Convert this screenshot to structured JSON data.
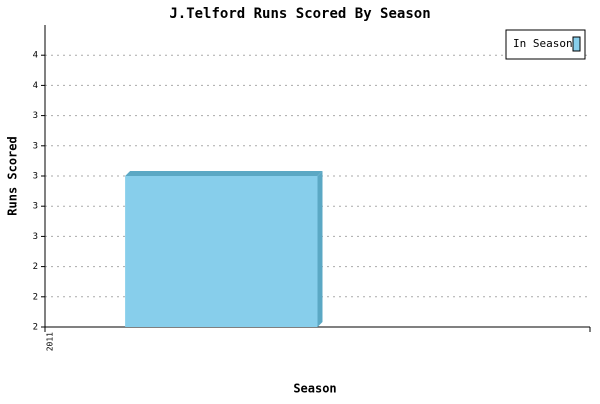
{
  "chart_data": {
    "type": "bar",
    "title": "J.Telford Runs Scored By Season",
    "x_label": "Season",
    "y_label": "Runs Scored",
    "categories": [
      "2011"
    ],
    "series": [
      {
        "name": "In Season",
        "color": "#87ceeb",
        "values": [
          3
        ]
      }
    ],
    "ylim": [
      2,
      4
    ],
    "yticks": [
      {
        "value": 2,
        "label": "2"
      },
      {
        "value": 2.2,
        "label": "2"
      },
      {
        "value": 2.4,
        "label": "2"
      },
      {
        "value": 2.6,
        "label": "3"
      },
      {
        "value": 2.8,
        "label": "3"
      },
      {
        "value": 3,
        "label": "3"
      },
      {
        "value": 3.2,
        "label": "3"
      },
      {
        "value": 3.4,
        "label": "3"
      },
      {
        "value": 3.6,
        "label": "4"
      },
      {
        "value": 3.8,
        "label": "4"
      }
    ],
    "grid": true,
    "legend": "top-right"
  }
}
